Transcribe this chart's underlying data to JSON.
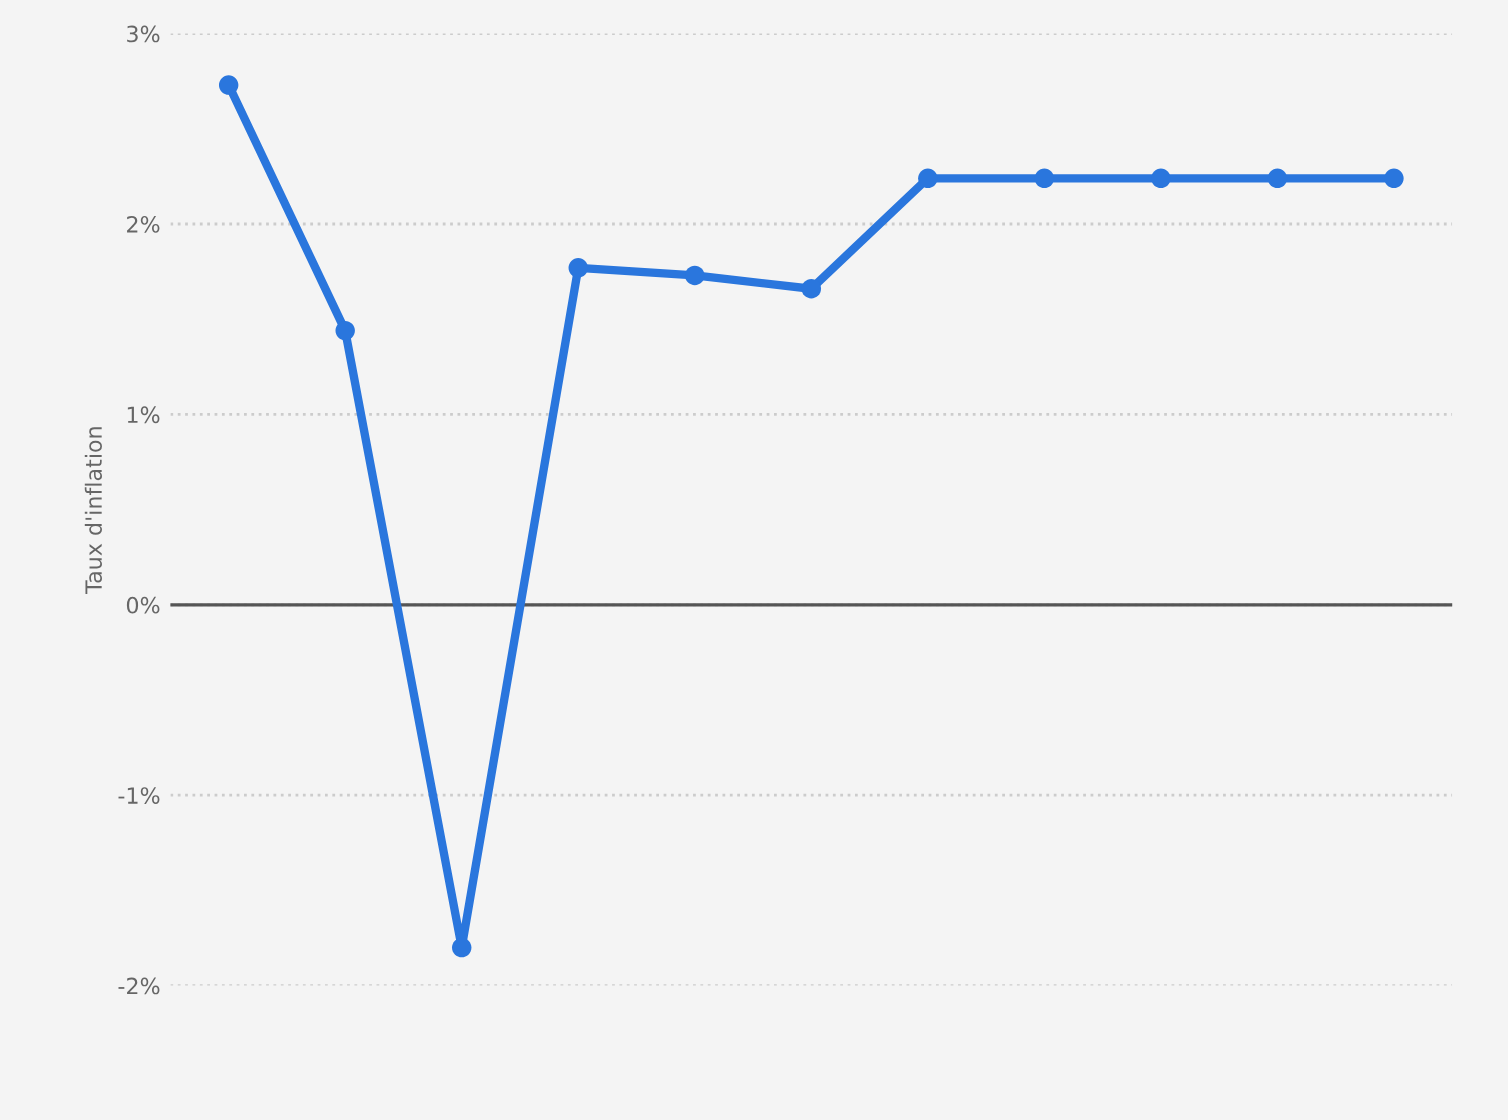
{
  "chart_data": {
    "type": "line",
    "ylabel": "Taux d'inflation",
    "categories": [
      null,
      null,
      null,
      null,
      null,
      null,
      null,
      null,
      null,
      null,
      null
    ],
    "series": [
      {
        "color": "#2a76dd",
        "values": [
          2.73,
          1.44,
          -1.8,
          1.77,
          1.73,
          1.66,
          2.24,
          2.24,
          2.24,
          2.24,
          2.24
        ]
      }
    ],
    "ylim": [
      -2,
      3
    ],
    "yticks": [
      {
        "value": -2,
        "label": "-2%"
      },
      {
        "value": -1,
        "label": "-1%"
      },
      {
        "value": 0,
        "label": "0%"
      },
      {
        "value": 1,
        "label": "1%"
      },
      {
        "value": 2,
        "label": "2%"
      },
      {
        "value": 3,
        "label": "3%"
      }
    ],
    "ref_lines": [
      {
        "axis": "y",
        "value": 0,
        "color": "#555555"
      }
    ],
    "grid": "y",
    "marker": "circle",
    "line_style": "solid",
    "legend": false
  }
}
